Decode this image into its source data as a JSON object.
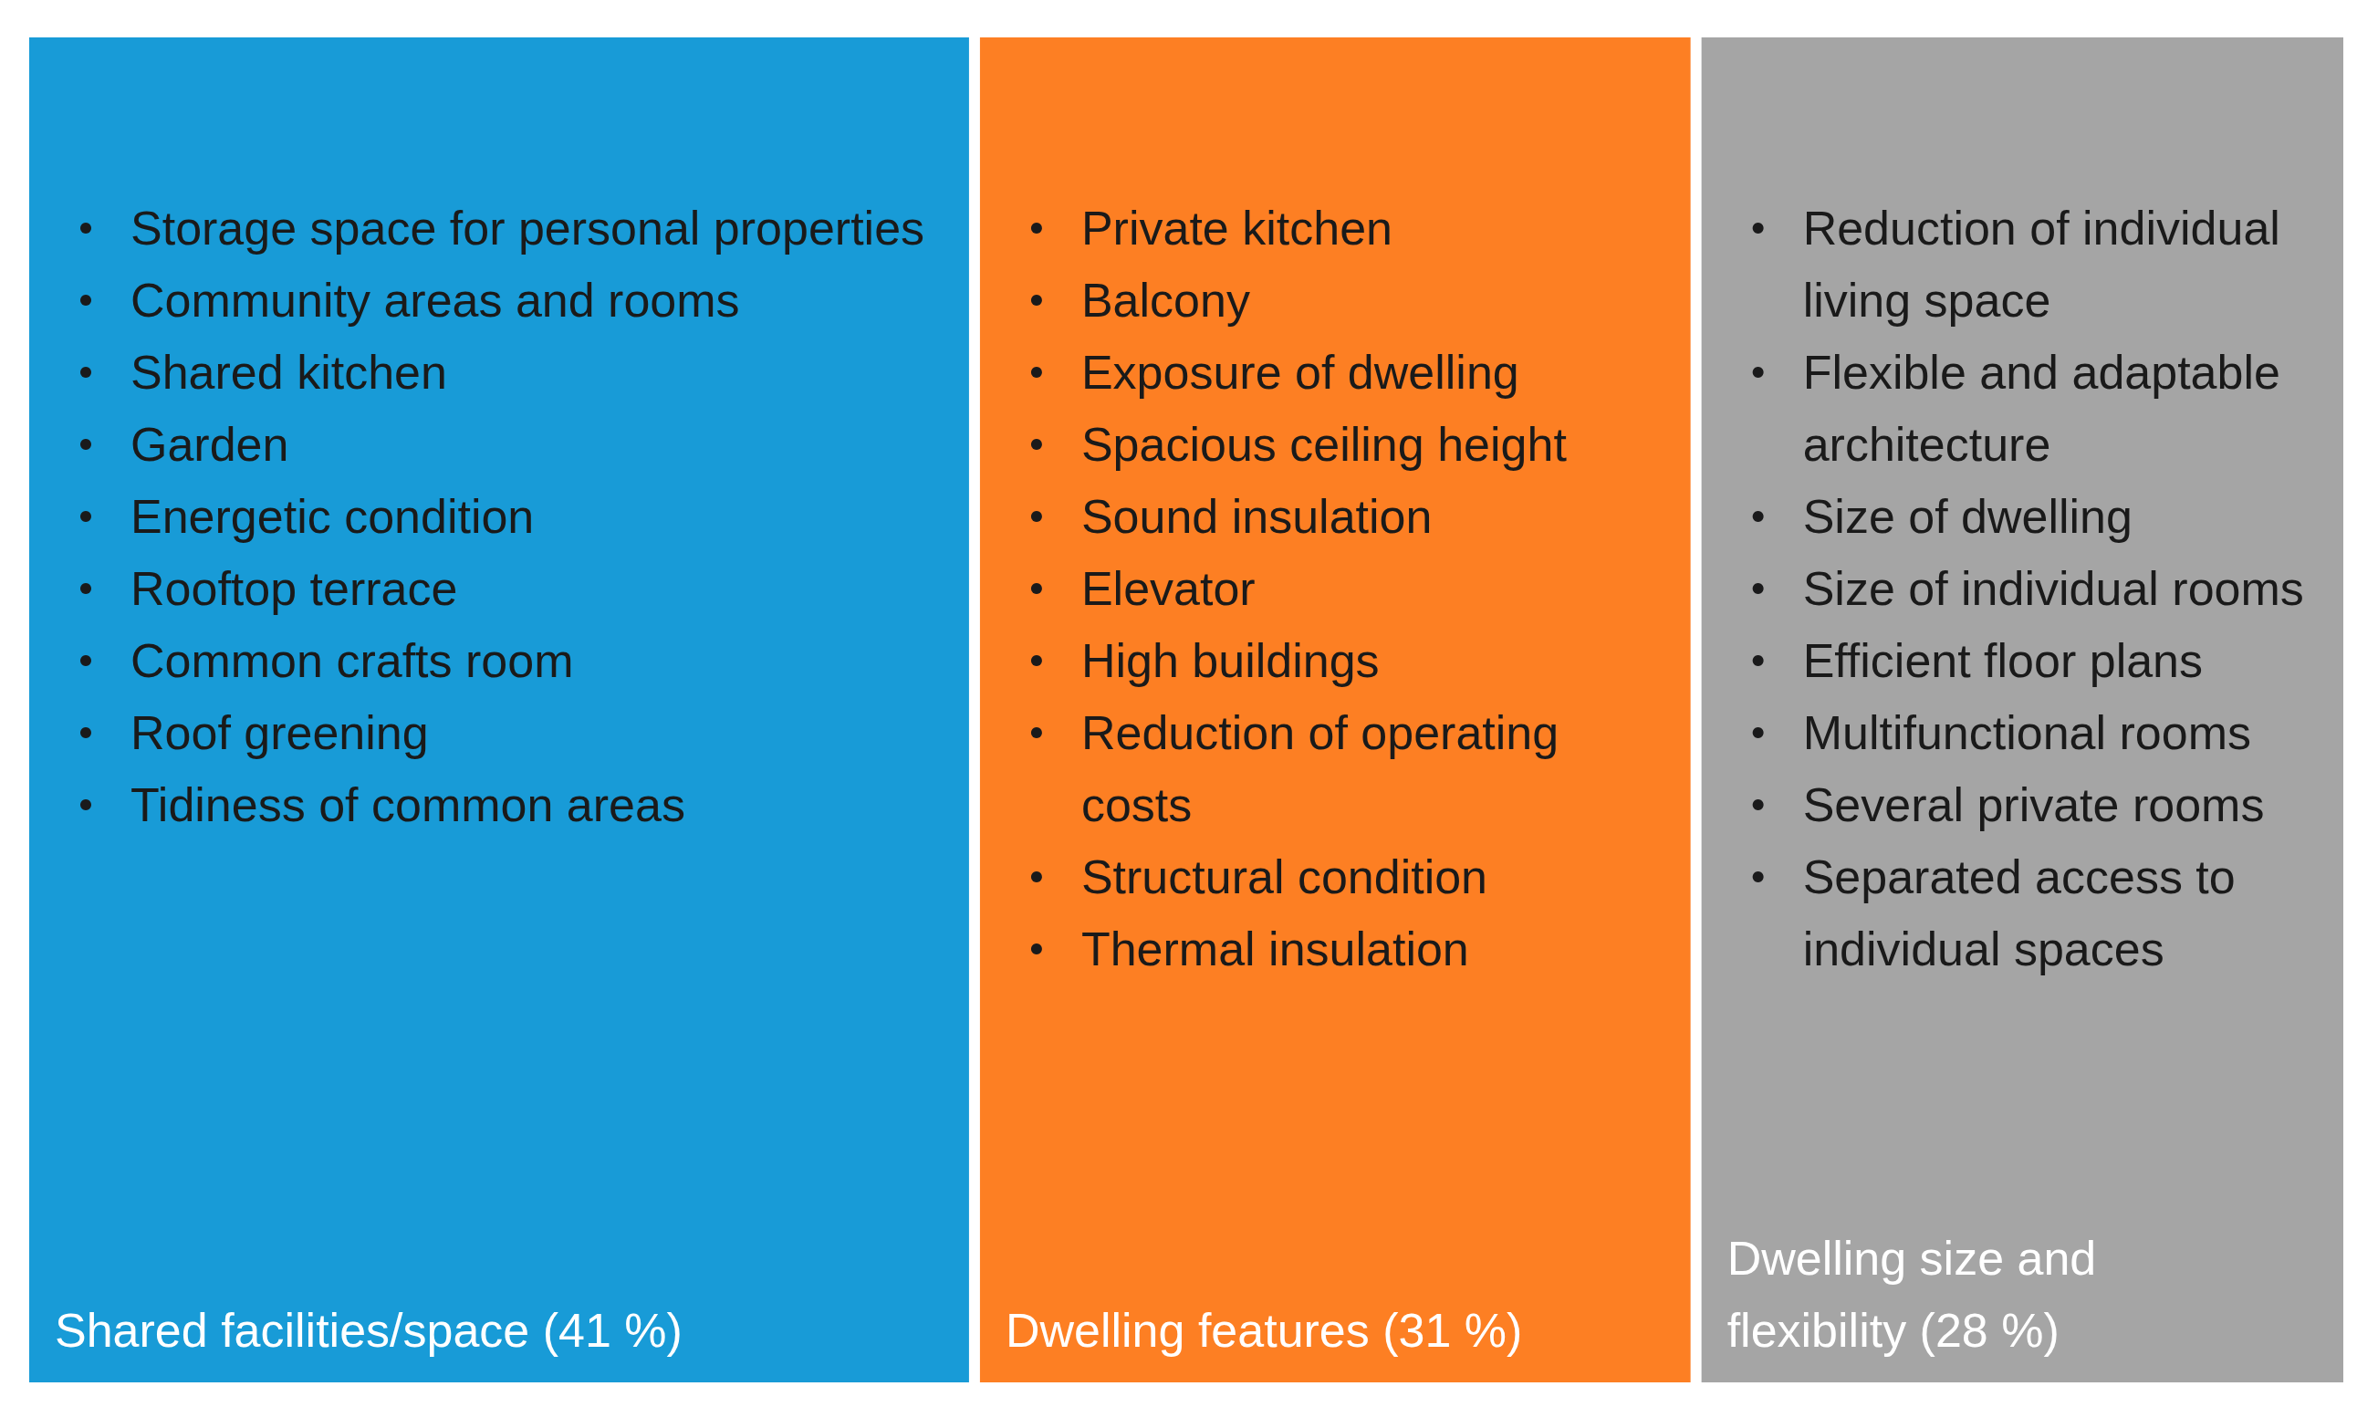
{
  "chart_data": {
    "type": "other",
    "categories": [
      "Shared facilities/space",
      "Dwelling features",
      "Dwelling size and flexibility"
    ],
    "values": [
      41,
      31,
      28
    ],
    "value_labels": [
      "(41 %)",
      "(31 %)",
      "(28 %)"
    ],
    "colors": [
      "#189bd7",
      "#fd7f23",
      "#a5a5a5"
    ],
    "annotations": [
      "Storage space for personal properties\nCommunity areas and rooms\nShared kitchen\nGarden\nEnergetic condition\nRooftop terrace\nCommon crafts room\nRoof greening\nTidiness of common areas",
      "Private kitchen\nBalcony\nExposure of dwelling\nSpacious ceiling height\nSound insulation\nElevator\nHigh buildings\nReduction of operating costs\nStructural condition\nThermal insulation",
      "Reduction of individual living space\nFlexible and adaptable architecture\nSize of dwelling\nSize of individual rooms\nEfficient floor plans\nMultifunctional rooms\nSeveral private rooms\nSeparated access to individual spaces"
    ]
  }
}
